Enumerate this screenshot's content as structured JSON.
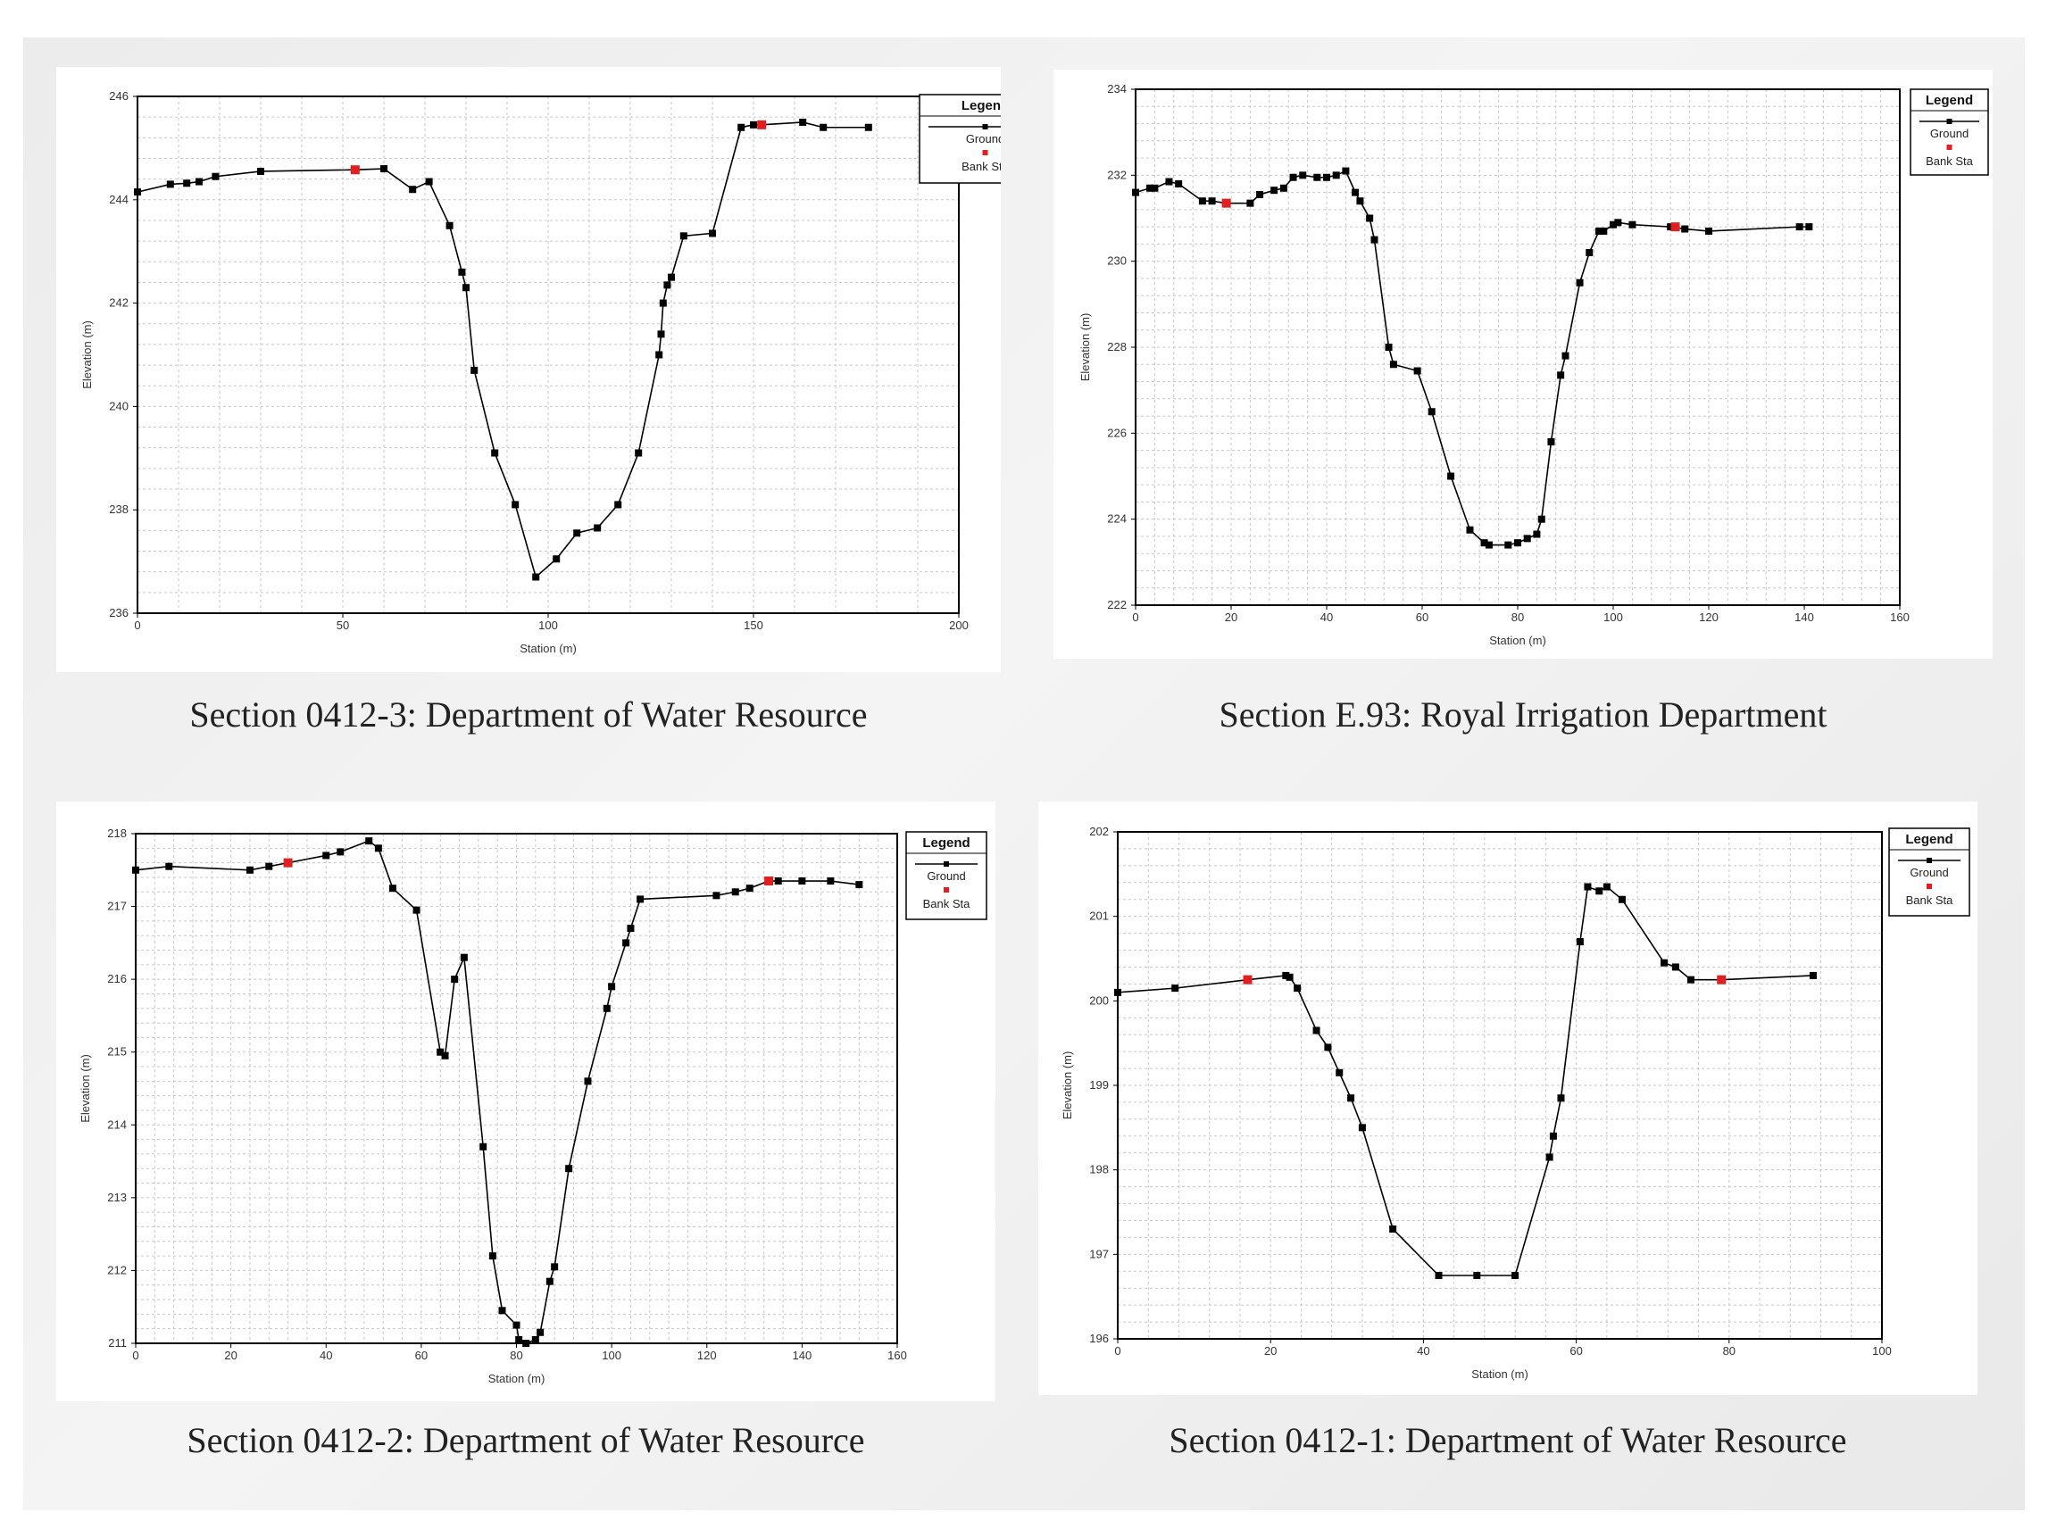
{
  "colors": {
    "ground": "#000000",
    "bank": "#e02020",
    "grid": "#c8c8c8"
  },
  "chart_data": [
    {
      "type": "line",
      "caption": "Section 0412-3: Department of Water Resource",
      "xlabel": "Station (m)",
      "ylabel": "Elevation (m)",
      "xlim": [
        0,
        200
      ],
      "ylim": [
        236,
        246
      ],
      "xticks": [
        0,
        50,
        100,
        150,
        200
      ],
      "yticks": [
        236,
        238,
        240,
        242,
        244,
        246
      ],
      "legend": {
        "title": "Legend",
        "ground": "Ground",
        "bank": "Bank Sta",
        "position": "top-right"
      },
      "ground": [
        [
          0,
          244.15
        ],
        [
          8,
          244.3
        ],
        [
          12,
          244.32
        ],
        [
          15,
          244.35
        ],
        [
          19,
          244.45
        ],
        [
          30,
          244.55
        ],
        [
          53,
          244.58
        ],
        [
          60,
          244.6
        ],
        [
          67,
          244.2
        ],
        [
          71,
          244.35
        ],
        [
          76,
          243.5
        ],
        [
          79,
          242.6
        ],
        [
          80,
          242.3
        ],
        [
          82,
          240.7
        ],
        [
          87,
          239.1
        ],
        [
          92,
          238.1
        ],
        [
          97,
          236.7
        ],
        [
          102,
          237.05
        ],
        [
          107,
          237.55
        ],
        [
          112,
          237.65
        ],
        [
          117,
          238.1
        ],
        [
          122,
          239.1
        ],
        [
          127,
          241.0
        ],
        [
          127.5,
          241.4
        ],
        [
          128,
          242.0
        ],
        [
          129,
          242.35
        ],
        [
          130,
          242.5
        ],
        [
          133,
          243.3
        ],
        [
          140,
          243.35
        ],
        [
          147,
          245.4
        ],
        [
          150,
          245.45
        ],
        [
          152,
          245.45
        ],
        [
          162,
          245.5
        ],
        [
          167,
          245.4
        ],
        [
          178,
          245.4
        ]
      ],
      "bank": [
        [
          53,
          244.58
        ],
        [
          152,
          245.45
        ]
      ]
    },
    {
      "type": "line",
      "caption": "Section E.93: Royal Irrigation Department",
      "xlabel": "Station (m)",
      "ylabel": "Elevation (m)",
      "xlim": [
        0,
        160
      ],
      "ylim": [
        222,
        234
      ],
      "xticks": [
        0,
        20,
        40,
        60,
        80,
        100,
        120,
        140,
        160
      ],
      "yticks": [
        222,
        224,
        226,
        228,
        230,
        232,
        234
      ],
      "legend": {
        "title": "Legend",
        "ground": "Ground",
        "bank": "Bank Sta",
        "position": "top-right"
      },
      "ground": [
        [
          0,
          231.6
        ],
        [
          3,
          231.7
        ],
        [
          4,
          231.7
        ],
        [
          7,
          231.85
        ],
        [
          9,
          231.8
        ],
        [
          14,
          231.4
        ],
        [
          16,
          231.4
        ],
        [
          19,
          231.35
        ],
        [
          24,
          231.35
        ],
        [
          26,
          231.55
        ],
        [
          29,
          231.65
        ],
        [
          31,
          231.7
        ],
        [
          33,
          231.95
        ],
        [
          35,
          232.0
        ],
        [
          38,
          231.95
        ],
        [
          40,
          231.95
        ],
        [
          42,
          232.0
        ],
        [
          44,
          232.1
        ],
        [
          46,
          231.6
        ],
        [
          47,
          231.4
        ],
        [
          49,
          231.0
        ],
        [
          50,
          230.5
        ],
        [
          53,
          228.0
        ],
        [
          54,
          227.6
        ],
        [
          59,
          227.45
        ],
        [
          62,
          226.5
        ],
        [
          66,
          225.0
        ],
        [
          70,
          223.75
        ],
        [
          73,
          223.45
        ],
        [
          74,
          223.4
        ],
        [
          78,
          223.4
        ],
        [
          80,
          223.45
        ],
        [
          82,
          223.55
        ],
        [
          84,
          223.65
        ],
        [
          85,
          224.0
        ],
        [
          87,
          225.8
        ],
        [
          89,
          227.35
        ],
        [
          90,
          227.8
        ],
        [
          93,
          229.5
        ],
        [
          95,
          230.2
        ],
        [
          97,
          230.7
        ],
        [
          98,
          230.7
        ],
        [
          100,
          230.85
        ],
        [
          101,
          230.9
        ],
        [
          104,
          230.85
        ],
        [
          112,
          230.8
        ],
        [
          115,
          230.75
        ],
        [
          120,
          230.7
        ],
        [
          139,
          230.8
        ],
        [
          141,
          230.8
        ]
      ],
      "bank": [
        [
          19,
          231.35
        ],
        [
          113,
          230.8
        ]
      ]
    },
    {
      "type": "line",
      "caption": "Section 0412-2: Department of Water Resource",
      "xlabel": "Station (m)",
      "ylabel": "Elevation (m)",
      "xlim": [
        0,
        160
      ],
      "ylim": [
        211,
        218
      ],
      "xticks": [
        0,
        20,
        40,
        60,
        80,
        100,
        120,
        140,
        160
      ],
      "yticks": [
        211,
        212,
        213,
        214,
        215,
        216,
        217,
        218
      ],
      "legend": {
        "title": "Legend",
        "ground": "Ground",
        "bank": "Bank Sta",
        "position": "top-right"
      },
      "ground": [
        [
          0,
          217.5
        ],
        [
          7,
          217.55
        ],
        [
          24,
          217.5
        ],
        [
          28,
          217.55
        ],
        [
          32,
          217.6
        ],
        [
          40,
          217.7
        ],
        [
          43,
          217.75
        ],
        [
          49,
          217.9
        ],
        [
          51,
          217.8
        ],
        [
          54,
          217.25
        ],
        [
          59,
          216.95
        ],
        [
          64,
          215.0
        ],
        [
          65,
          214.95
        ],
        [
          67,
          216.0
        ],
        [
          69,
          216.3
        ],
        [
          73,
          213.7
        ],
        [
          75,
          212.2
        ],
        [
          77,
          211.45
        ],
        [
          80,
          211.25
        ],
        [
          80.5,
          211.05
        ],
        [
          82,
          211.0
        ],
        [
          84,
          211.05
        ],
        [
          85,
          211.15
        ],
        [
          87,
          211.85
        ],
        [
          88,
          212.05
        ],
        [
          91,
          213.4
        ],
        [
          95,
          214.6
        ],
        [
          99,
          215.6
        ],
        [
          100,
          215.9
        ],
        [
          103,
          216.5
        ],
        [
          104,
          216.7
        ],
        [
          106,
          217.1
        ],
        [
          122,
          217.15
        ],
        [
          126,
          217.2
        ],
        [
          129,
          217.25
        ],
        [
          133,
          217.35
        ],
        [
          135,
          217.35
        ],
        [
          140,
          217.35
        ],
        [
          146,
          217.35
        ],
        [
          152,
          217.3
        ]
      ],
      "bank": [
        [
          32,
          217.6
        ],
        [
          133,
          217.35
        ]
      ]
    },
    {
      "type": "line",
      "caption": "Section 0412-1: Department of Water Resource",
      "xlabel": "Station (m)",
      "ylabel": "Elevation (m)",
      "xlim": [
        0,
        100
      ],
      "ylim": [
        196,
        202
      ],
      "xticks": [
        0,
        20,
        40,
        60,
        80,
        100
      ],
      "yticks": [
        196,
        197,
        198,
        199,
        200,
        201,
        202
      ],
      "legend": {
        "title": "Legend",
        "ground": "Ground",
        "bank": "Bank Sta",
        "position": "top-right"
      },
      "ground": [
        [
          0,
          200.1
        ],
        [
          7.5,
          200.15
        ],
        [
          17,
          200.25
        ],
        [
          22,
          200.3
        ],
        [
          22.5,
          200.28
        ],
        [
          23.5,
          200.15
        ],
        [
          26,
          199.65
        ],
        [
          27.5,
          199.45
        ],
        [
          29,
          199.15
        ],
        [
          30.5,
          198.85
        ],
        [
          32,
          198.5
        ],
        [
          36,
          197.3
        ],
        [
          42,
          196.75
        ],
        [
          47,
          196.75
        ],
        [
          52,
          196.75
        ],
        [
          56.5,
          198.15
        ],
        [
          57,
          198.4
        ],
        [
          58,
          198.85
        ],
        [
          60.5,
          200.7
        ],
        [
          61.5,
          201.35
        ],
        [
          63,
          201.3
        ],
        [
          64,
          201.35
        ],
        [
          66,
          201.2
        ],
        [
          71.5,
          200.45
        ],
        [
          73,
          200.4
        ],
        [
          75,
          200.25
        ],
        [
          79,
          200.25
        ],
        [
          91,
          200.3
        ]
      ],
      "bank": [
        [
          17,
          200.25
        ],
        [
          79,
          200.25
        ]
      ]
    }
  ]
}
